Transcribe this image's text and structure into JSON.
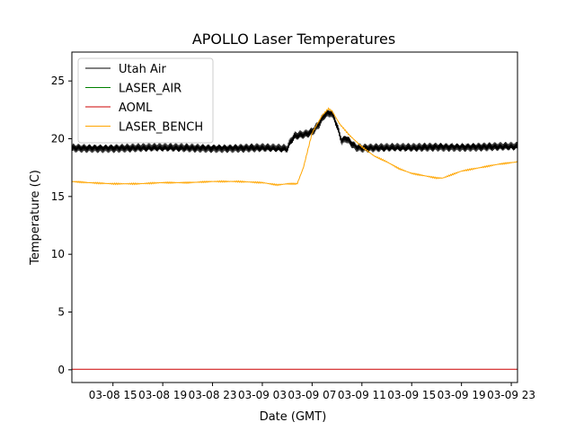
{
  "chart_data": {
    "type": "line",
    "title": "APOLLO Laser Temperatures",
    "xlabel": "Date (GMT)",
    "ylabel": "Temperature (C)",
    "xlim": [
      11.7,
      47.5
    ],
    "ylim": [
      -1.1,
      27.5
    ],
    "x_ticks": [
      {
        "value": 15,
        "label": "03-08 15"
      },
      {
        "value": 19,
        "label": "03-08 19"
      },
      {
        "value": 23,
        "label": "03-08 23"
      },
      {
        "value": 27,
        "label": "03-09 03"
      },
      {
        "value": 31,
        "label": "03-09 07"
      },
      {
        "value": 35,
        "label": "03-09 11"
      },
      {
        "value": 39,
        "label": "03-09 15"
      },
      {
        "value": 43,
        "label": "03-09 19"
      },
      {
        "value": 47,
        "label": "03-09 23"
      }
    ],
    "y_ticks": [
      {
        "value": 0,
        "label": "0"
      },
      {
        "value": 5,
        "label": "5"
      },
      {
        "value": 10,
        "label": "10"
      },
      {
        "value": 15,
        "label": "15"
      },
      {
        "value": 20,
        "label": "20"
      },
      {
        "value": 25,
        "label": "25"
      }
    ],
    "grid": false,
    "legend_position": "top-left",
    "series": [
      {
        "name": "Utah Air",
        "color": "#000000",
        "x": [
          11.7,
          13,
          15,
          17,
          19,
          21,
          23,
          25,
          27,
          29.0,
          29.3,
          29.6,
          30.0,
          30.5,
          31.0,
          31.5,
          32.0,
          32.5,
          32.8,
          33.1,
          33.4,
          33.7,
          34.0,
          34.5,
          35.0,
          37,
          39,
          41,
          43,
          45,
          47.5
        ],
        "y": [
          19.2,
          19.2,
          19.2,
          19.2,
          19.2,
          19.2,
          19.2,
          19.2,
          19.2,
          19.1,
          19.8,
          20.2,
          20.3,
          20.4,
          20.6,
          21.2,
          22.1,
          22.3,
          21.8,
          20.8,
          19.8,
          20.1,
          19.8,
          19.3,
          19.2,
          19.2,
          19.2,
          19.3,
          19.3,
          19.3,
          19.3
        ],
        "oscillation": 0.35
      },
      {
        "name": "LASER_AIR",
        "color": "#008000",
        "x": [],
        "y": []
      },
      {
        "name": "AOML",
        "color": "#cc0000",
        "x": [
          11.7,
          47.5
        ],
        "y": [
          0.05,
          0.05
        ]
      },
      {
        "name": "LASER_BENCH",
        "color": "#ffa500",
        "x": [
          11.7,
          13,
          15,
          17,
          19,
          21,
          23,
          25,
          27,
          28.2,
          29.0,
          29.8,
          30.3,
          31.0,
          31.8,
          32.3,
          32.6,
          33.2,
          34.0,
          35.0,
          36.0,
          37.0,
          38.0,
          39.0,
          40.0,
          41.0,
          41.5,
          42.0,
          43.0,
          44.0,
          45.0,
          46.0,
          47.5
        ],
        "y": [
          16.3,
          16.2,
          16.1,
          16.1,
          16.2,
          16.2,
          16.3,
          16.3,
          16.2,
          16.0,
          16.1,
          16.1,
          17.5,
          20.5,
          22.0,
          22.6,
          22.4,
          21.3,
          20.3,
          19.3,
          18.5,
          18.0,
          17.4,
          17.0,
          16.8,
          16.6,
          16.6,
          16.8,
          17.2,
          17.4,
          17.6,
          17.8,
          18.0
        ]
      }
    ]
  }
}
